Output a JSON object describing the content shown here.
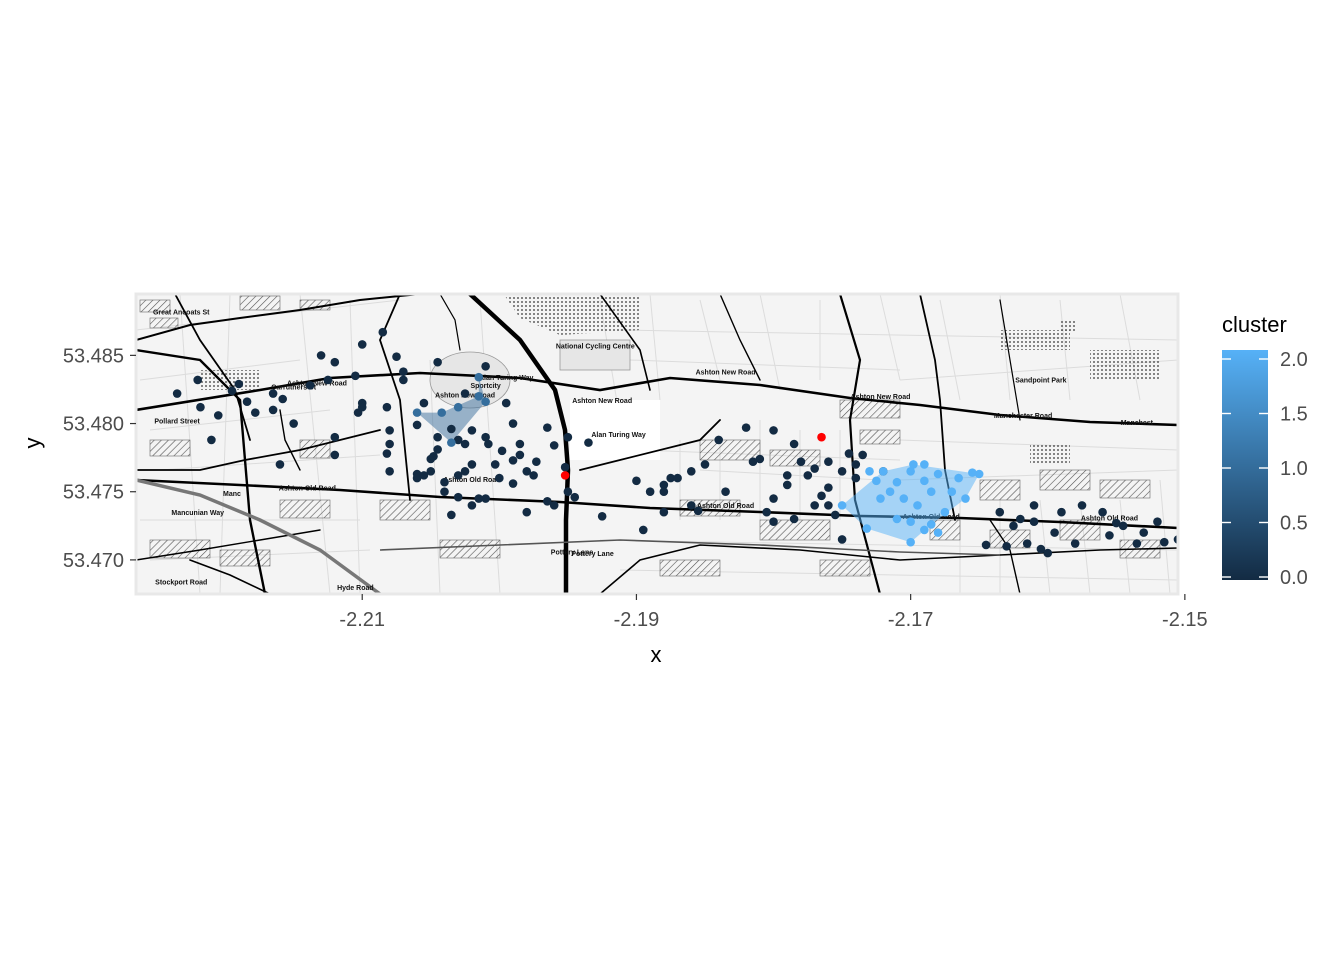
{
  "chart_data": {
    "type": "scatter",
    "background": "street map (grayscale tiles)",
    "xlabel": "x",
    "ylabel": "y",
    "xlim": [
      -2.2265,
      -2.1505
    ],
    "ylim": [
      53.4675,
      53.4895
    ],
    "x_ticks": [
      {
        "value": -2.21,
        "label": "-2.21"
      },
      {
        "value": -2.19,
        "label": "-2.19"
      },
      {
        "value": -2.17,
        "label": "-2.17"
      },
      {
        "value": -2.15,
        "label": "-2.15"
      }
    ],
    "y_ticks": [
      {
        "value": 53.47,
        "label": "53.470"
      },
      {
        "value": 53.475,
        "label": "53.475"
      },
      {
        "value": 53.48,
        "label": "53.480"
      },
      {
        "value": 53.485,
        "label": "53.485"
      }
    ],
    "legend": {
      "title": "cluster",
      "position": "right",
      "type": "colorbar",
      "range": [
        0,
        2
      ],
      "ticks": [
        {
          "value": 0.0,
          "label": "0.0"
        },
        {
          "value": 0.5,
          "label": "0.5"
        },
        {
          "value": 1.0,
          "label": "1.0"
        },
        {
          "value": 1.5,
          "label": "1.5"
        },
        {
          "value": 2.0,
          "label": "2.0"
        }
      ],
      "low_color": "#132B43",
      "high_color": "#56B1F7"
    },
    "map_labels": [
      {
        "text": "Ashton New Road",
        "x": -2.2025,
        "y": 53.4819
      },
      {
        "text": "Ashton New Road",
        "x": -2.1925,
        "y": 53.4815
      },
      {
        "text": "Ashton New Road",
        "x": -2.1835,
        "y": 53.4836
      },
      {
        "text": "Ashton New Road",
        "x": -2.1722,
        "y": 53.4818
      },
      {
        "text": "Ashton New Road",
        "x": -2.2133,
        "y": 53.4828
      },
      {
        "text": "Manchester Road",
        "x": -2.1618,
        "y": 53.4804
      },
      {
        "text": "Manchest",
        "x": -2.1535,
        "y": 53.4799
      },
      {
        "text": "Ashton Old Road",
        "x": -2.214,
        "y": 53.4751
      },
      {
        "text": "Ashton Old Road",
        "x": -2.202,
        "y": 53.4757
      },
      {
        "text": "Ashton Old Road",
        "x": -2.1835,
        "y": 53.4738
      },
      {
        "text": "Ashton Old Road",
        "x": -2.1685,
        "y": 53.473
      },
      {
        "text": "Ashton Old Road",
        "x": -2.1555,
        "y": 53.4729
      },
      {
        "text": "Manc",
        "x": -2.2195,
        "y": 53.4747
      },
      {
        "text": "Mancunian Way",
        "x": -2.222,
        "y": 53.4733
      },
      {
        "text": "Alan Turing Way",
        "x": -2.1913,
        "y": 53.479
      },
      {
        "text": "Pottery Lane",
        "x": -2.1932,
        "y": 53.4703
      },
      {
        "text": "Pottery Lane",
        "x": -2.1947,
        "y": 53.4704
      },
      {
        "text": "Hyde Road",
        "x": -2.2105,
        "y": 53.4678
      },
      {
        "text": "Stockport Road",
        "x": -2.2232,
        "y": 53.4682
      },
      {
        "text": "Pollard Street",
        "x": -2.2235,
        "y": 53.48
      },
      {
        "text": "Great Ancoats St",
        "x": -2.2232,
        "y": 53.488
      },
      {
        "text": "Carruthers St",
        "x": -2.215,
        "y": 53.4825
      },
      {
        "text": "Alan Turing Way",
        "x": -2.1995,
        "y": 53.4832
      },
      {
        "text": "Sportcity",
        "x": -2.201,
        "y": 53.4826
      },
      {
        "text": "National Cycling Centre",
        "x": -2.193,
        "y": 53.4855
      },
      {
        "text": "Sandpoint Park",
        "x": -2.1605,
        "y": 53.483
      }
    ],
    "hulls": [
      {
        "cluster": 1,
        "color": "#3A6E9B",
        "opacity": 0.5,
        "points": [
          [
            -2.2042,
            53.4808
          ],
          [
            -2.2015,
            53.482
          ],
          [
            -2.2015,
            53.4834
          ],
          [
            -2.201,
            53.4816
          ],
          [
            -2.2035,
            53.4786
          ],
          [
            -2.206,
            53.4808
          ]
        ]
      },
      {
        "cluster": 2,
        "color": "#56B1F7",
        "opacity": 0.5,
        "points": [
          [
            -2.172,
            53.4765
          ],
          [
            -2.1698,
            53.477
          ],
          [
            -2.165,
            53.4763
          ],
          [
            -2.166,
            53.4745
          ],
          [
            -2.1685,
            53.4726
          ],
          [
            -2.17,
            53.4713
          ],
          [
            -2.1732,
            53.4723
          ],
          [
            -2.175,
            53.474
          ]
        ]
      }
    ],
    "series": [
      {
        "cluster": 0,
        "points": [
          [
            -2.219,
            53.4829
          ],
          [
            -2.2165,
            53.4822
          ],
          [
            -2.2138,
            53.4828
          ],
          [
            -2.212,
            53.4845
          ],
          [
            -2.21,
            53.4858
          ],
          [
            -2.2085,
            53.4867
          ],
          [
            -2.2075,
            53.4849
          ],
          [
            -2.207,
            53.4838
          ],
          [
            -2.2045,
            53.4845
          ],
          [
            -2.21,
            53.4815
          ],
          [
            -2.2103,
            53.4808
          ],
          [
            -2.212,
            53.479
          ],
          [
            -2.208,
            53.4785
          ],
          [
            -2.2165,
            53.481
          ],
          [
            -2.2178,
            53.4808
          ],
          [
            -2.2184,
            53.4816
          ],
          [
            -2.2218,
            53.4812
          ],
          [
            -2.2205,
            53.4806
          ],
          [
            -2.2235,
            53.4822
          ],
          [
            -2.222,
            53.4832
          ],
          [
            -2.215,
            53.48
          ],
          [
            -2.21,
            53.4812
          ],
          [
            -2.2105,
            53.4835
          ],
          [
            -2.213,
            53.485
          ],
          [
            -2.2125,
            53.4832
          ],
          [
            -2.2082,
            53.4812
          ],
          [
            -2.2158,
            53.4818
          ],
          [
            -2.2195,
            53.4824
          ],
          [
            -2.221,
            53.4788
          ],
          [
            -2.216,
            53.477
          ],
          [
            -2.212,
            53.4777
          ],
          [
            -2.2082,
            53.4778
          ],
          [
            -2.208,
            53.4765
          ],
          [
            -2.205,
            53.4765
          ],
          [
            -2.204,
            53.4757
          ],
          [
            -2.203,
            53.4762
          ],
          [
            -2.2055,
            53.4815
          ],
          [
            -2.2025,
            53.4785
          ],
          [
            -2.2008,
            53.4785
          ],
          [
            -2.199,
            53.48
          ],
          [
            -2.1985,
            53.4785
          ],
          [
            -2.1965,
            53.4797
          ],
          [
            -2.196,
            53.4784
          ],
          [
            -2.195,
            53.479
          ],
          [
            -2.1952,
            53.4768
          ],
          [
            -2.1945,
            53.4746
          ],
          [
            -2.1935,
            53.4786
          ],
          [
            -2.201,
            53.4745
          ],
          [
            -2.2,
            53.476
          ],
          [
            -2.199,
            53.4756
          ],
          [
            -2.198,
            53.4735
          ],
          [
            -2.2015,
            53.4745
          ],
          [
            -2.202,
            53.474
          ],
          [
            -2.203,
            53.4746
          ],
          [
            -2.204,
            53.475
          ],
          [
            -2.1965,
            53.4743
          ],
          [
            -2.196,
            53.474
          ],
          [
            -2.2035,
            53.4733
          ],
          [
            -2.198,
            53.4765
          ],
          [
            -2.1975,
            53.4762
          ],
          [
            -2.195,
            53.475
          ],
          [
            -2.206,
            53.4763
          ],
          [
            -2.205,
            53.4774
          ],
          [
            -2.202,
            53.477
          ],
          [
            -2.2003,
            53.477
          ],
          [
            -2.201,
            53.479
          ],
          [
            -2.202,
            53.4795
          ],
          [
            -2.1985,
            53.4777
          ],
          [
            -2.203,
            53.4788
          ],
          [
            -2.2045,
            53.479
          ],
          [
            -2.1998,
            53.478
          ],
          [
            -2.1995,
            53.4815
          ],
          [
            -2.201,
            53.4842
          ],
          [
            -2.2025,
            53.4822
          ],
          [
            -2.1973,
            53.4772
          ],
          [
            -2.208,
            53.4795
          ],
          [
            -2.206,
            53.476
          ],
          [
            -2.2048,
            53.4776
          ],
          [
            -2.2025,
            53.4765
          ],
          [
            -2.199,
            53.4773
          ],
          [
            -2.207,
            53.4832
          ],
          [
            -2.2055,
            53.4762
          ],
          [
            -2.2045,
            53.4781
          ],
          [
            -2.2035,
            53.4796
          ],
          [
            -2.206,
            53.4799
          ],
          [
            -2.19,
            53.4758
          ],
          [
            -2.189,
            53.475
          ],
          [
            -2.188,
            53.4755
          ],
          [
            -2.1875,
            53.476
          ],
          [
            -2.188,
            53.475
          ],
          [
            -2.185,
            53.477
          ],
          [
            -2.187,
            53.476
          ],
          [
            -2.186,
            53.4765
          ],
          [
            -2.184,
            53.4788
          ],
          [
            -2.182,
            53.4797
          ],
          [
            -2.18,
            53.4795
          ],
          [
            -2.181,
            53.4774
          ],
          [
            -2.178,
            53.4772
          ],
          [
            -2.176,
            53.4772
          ],
          [
            -2.1785,
            53.4785
          ],
          [
            -2.177,
            53.4767
          ],
          [
            -2.175,
            53.4765
          ],
          [
            -2.1745,
            53.4778
          ],
          [
            -2.1735,
            53.4777
          ],
          [
            -2.172,
            53.4765
          ],
          [
            -2.174,
            53.477
          ],
          [
            -2.176,
            53.4753
          ],
          [
            -2.1775,
            53.4762
          ],
          [
            -2.179,
            53.4762
          ],
          [
            -2.18,
            53.4745
          ],
          [
            -2.1805,
            53.4735
          ],
          [
            -2.177,
            53.474
          ],
          [
            -2.176,
            53.474
          ],
          [
            -2.179,
            53.4755
          ],
          [
            -2.1855,
            53.4736
          ],
          [
            -2.188,
            53.4735
          ],
          [
            -2.1895,
            53.4722
          ],
          [
            -2.1925,
            53.4732
          ],
          [
            -2.18,
            53.4728
          ],
          [
            -2.1785,
            53.473
          ],
          [
            -2.1765,
            53.4747
          ],
          [
            -2.1755,
            53.4733
          ],
          [
            -2.174,
            53.476
          ],
          [
            -2.186,
            53.474
          ],
          [
            -2.175,
            53.4715
          ],
          [
            -2.1815,
            53.4772
          ],
          [
            -2.1835,
            53.475
          ],
          [
            -2.1635,
            53.4735
          ],
          [
            -2.1625,
            53.4725
          ],
          [
            -2.162,
            53.473
          ],
          [
            -2.161,
            53.4728
          ],
          [
            -2.1615,
            53.4712
          ],
          [
            -2.163,
            53.471
          ],
          [
            -2.161,
            53.474
          ],
          [
            -2.1595,
            53.472
          ],
          [
            -2.159,
            53.4735
          ],
          [
            -2.1575,
            53.474
          ],
          [
            -2.156,
            53.4735
          ],
          [
            -2.1545,
            53.4725
          ],
          [
            -2.153,
            53.472
          ],
          [
            -2.152,
            53.4728
          ],
          [
            -2.1515,
            53.4713
          ],
          [
            -2.1505,
            53.4715
          ],
          [
            -2.1535,
            53.4712
          ],
          [
            -2.1555,
            53.4718
          ],
          [
            -2.158,
            53.4712
          ],
          [
            -2.1605,
            53.4708
          ],
          [
            -2.1645,
            53.4711
          ],
          [
            -2.16,
            53.4705
          ],
          [
            -2.155,
            53.4727
          ],
          [
            -2.15,
            53.4728
          ]
        ]
      },
      {
        "cluster": 1,
        "points": [
          [
            -2.2042,
            53.4808
          ],
          [
            -2.2015,
            53.482
          ],
          [
            -2.2015,
            53.4834
          ],
          [
            -2.201,
            53.4816
          ],
          [
            -2.2035,
            53.4786
          ],
          [
            -2.206,
            53.4808
          ],
          [
            -2.203,
            53.4812
          ]
        ]
      },
      {
        "cluster": 2,
        "points": [
          [
            -2.172,
            53.4765
          ],
          [
            -2.1698,
            53.477
          ],
          [
            -2.165,
            53.4763
          ],
          [
            -2.166,
            53.4745
          ],
          [
            -2.1685,
            53.4726
          ],
          [
            -2.17,
            53.4713
          ],
          [
            -2.1732,
            53.4723
          ],
          [
            -2.175,
            53.474
          ],
          [
            -2.171,
            53.4757
          ],
          [
            -2.17,
            53.4765
          ],
          [
            -2.169,
            53.4758
          ],
          [
            -2.168,
            53.4763
          ],
          [
            -2.167,
            53.475
          ],
          [
            -2.1715,
            53.475
          ],
          [
            -2.1725,
            53.4758
          ],
          [
            -2.1705,
            53.4745
          ],
          [
            -2.1695,
            53.474
          ],
          [
            -2.1685,
            53.475
          ],
          [
            -2.1675,
            53.4735
          ],
          [
            -2.1665,
            53.476
          ],
          [
            -2.1655,
            53.4764
          ],
          [
            -2.169,
            53.4722
          ],
          [
            -2.168,
            53.472
          ],
          [
            -2.171,
            53.473
          ],
          [
            -2.17,
            53.4728
          ],
          [
            -2.173,
            53.4765
          ],
          [
            -2.169,
            53.477
          ],
          [
            -2.1722,
            53.4745
          ]
        ]
      }
    ],
    "noise_points": {
      "color": "#FF0000",
      "points": [
        [
          -2.1952,
          53.4762
        ],
        [
          -2.1765,
          53.479
        ]
      ]
    }
  }
}
